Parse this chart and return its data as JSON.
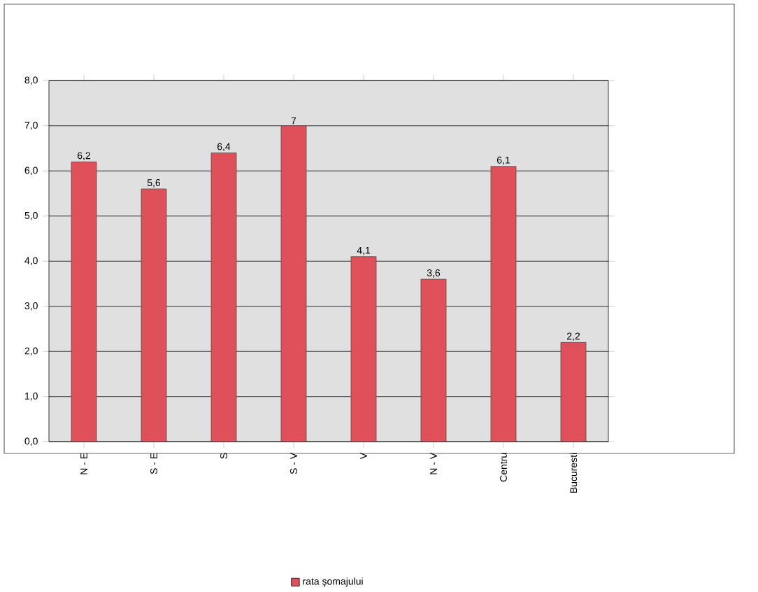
{
  "chart_data": {
    "type": "bar",
    "categories": [
      "N - E",
      "S - E",
      "S",
      "S - V",
      "V",
      "N - V",
      "Centru",
      "Bucuresti"
    ],
    "series": [
      {
        "name": "rata şomajului",
        "color": "#e0505a",
        "values": [
          6.2,
          5.6,
          6.4,
          7,
          4.1,
          3.6,
          6.1,
          2.2
        ],
        "value_labels": [
          "6,2",
          "5,6",
          "6,4",
          "7",
          "4,1",
          "3,6",
          "6,1",
          "2,2"
        ]
      }
    ],
    "ylim": [
      0,
      8
    ],
    "yticks": [
      {
        "value": 0,
        "label": "0,0"
      },
      {
        "value": 1,
        "label": "1,0"
      },
      {
        "value": 2,
        "label": "2,0"
      },
      {
        "value": 3,
        "label": "3,0"
      },
      {
        "value": 4,
        "label": "4,0"
      },
      {
        "value": 5,
        "label": "5,0"
      },
      {
        "value": 6,
        "label": "6,0"
      },
      {
        "value": 7,
        "label": "7,0"
      },
      {
        "value": 8,
        "label": "8,0"
      }
    ],
    "grid": "y",
    "legend": "bottom"
  }
}
